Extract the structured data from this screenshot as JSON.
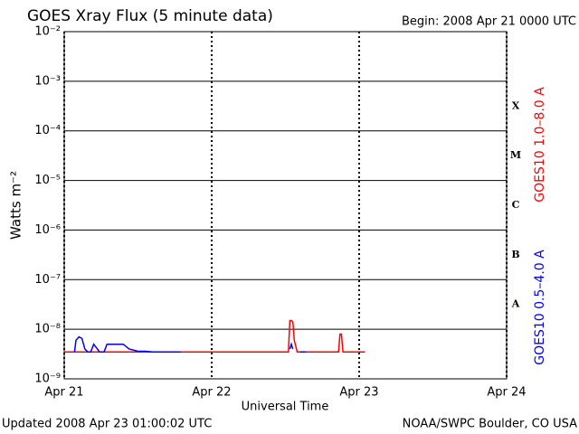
{
  "chart_data": {
    "type": "line",
    "title": "GOES Xray Flux (5 minute data)",
    "subtitle": "Begin:  2008 Apr 21 0000 UTC",
    "xlabel": "Universal Time",
    "ylabel": "Watts m⁻²",
    "footer_left": "Updated 2008 Apr 23 01:00:02 UTC",
    "footer_right": "NOAA/SWPC Boulder, CO USA",
    "log_y": true,
    "grid": true,
    "xlim": [
      0,
      3
    ],
    "xticks": [
      {
        "value": 0,
        "label": "Apr 21"
      },
      {
        "value": 1,
        "label": "Apr 22"
      },
      {
        "value": 2,
        "label": "Apr 23"
      },
      {
        "value": 3,
        "label": "Apr 24"
      }
    ],
    "ylim": [
      1e-09,
      0.01
    ],
    "yticks": [
      {
        "value": 1e-09,
        "label": "10⁻⁹"
      },
      {
        "value": 1e-08,
        "label": "10⁻⁸"
      },
      {
        "value": 1e-07,
        "label": "10⁻⁷"
      },
      {
        "value": 1e-06,
        "label": "10⁻⁶"
      },
      {
        "value": 1e-05,
        "label": "10⁻⁵"
      },
      {
        "value": 0.0001,
        "label": "10⁻⁴"
      },
      {
        "value": 0.001,
        "label": "10⁻³"
      },
      {
        "value": 0.01,
        "label": "10⁻²"
      }
    ],
    "flare_classes": [
      {
        "label": "X",
        "value": 0.0001
      },
      {
        "label": "M",
        "value": 1e-05
      },
      {
        "label": "C",
        "value": 1e-06
      },
      {
        "label": "B",
        "value": 1e-07
      },
      {
        "label": "A",
        "value": 1e-08
      }
    ],
    "x": [
      0,
      0.07,
      0.08,
      0.1,
      0.12,
      0.14,
      0.16,
      0.18,
      0.2,
      0.24,
      0.27,
      0.29,
      0.3,
      0.34,
      0.37,
      0.4,
      0.44,
      0.5,
      0.55,
      0.6,
      0.65,
      0.7,
      0.79,
      1.0,
      1.3,
      1.52,
      1.53,
      1.54,
      1.55,
      1.56,
      1.58,
      1.6,
      1.64,
      1.7,
      1.8,
      1.86,
      1.87,
      1.88,
      1.89,
      2.0,
      2.04
    ],
    "series": [
      {
        "name": "GOES10 1.0–8.0 A",
        "color": "#ff0000",
        "values": [
          3.5e-09,
          3.5e-09,
          3.5e-09,
          3.5e-09,
          3.5e-09,
          3.5e-09,
          3.5e-09,
          3.5e-09,
          3.5e-09,
          3.5e-09,
          3.5e-09,
          3.5e-09,
          3.5e-09,
          3.5e-09,
          3.5e-09,
          3.5e-09,
          3.5e-09,
          3.5e-09,
          3.5e-09,
          3.5e-09,
          3.5e-09,
          3.5e-09,
          3.5e-09,
          3.5e-09,
          3.5e-09,
          3.5e-09,
          1.5e-08,
          1.5e-08,
          1.4e-08,
          6e-09,
          3.5e-09,
          3.5e-09,
          3.5e-09,
          3.5e-09,
          3.5e-09,
          3.5e-09,
          8e-09,
          8e-09,
          3.5e-09,
          3.5e-09,
          3.5e-09
        ]
      },
      {
        "name": "GOES10 0.5–4.0 A",
        "color": "#0000ff",
        "values": [
          null,
          3.5e-09,
          6e-09,
          7e-09,
          6.5e-09,
          4e-09,
          3.5e-09,
          3.5e-09,
          5e-09,
          3.5e-09,
          3.5e-09,
          5e-09,
          5e-09,
          5e-09,
          5e-09,
          5e-09,
          4e-09,
          3.6e-09,
          3.6e-09,
          3.5e-09,
          3.5e-09,
          3.5e-09,
          3.5e-09,
          null,
          null,
          null,
          4e-09,
          5e-09,
          4e-09,
          null,
          null,
          3.5e-09,
          3.5e-09,
          null,
          null,
          null,
          null,
          null,
          null,
          null,
          null
        ]
      }
    ]
  }
}
